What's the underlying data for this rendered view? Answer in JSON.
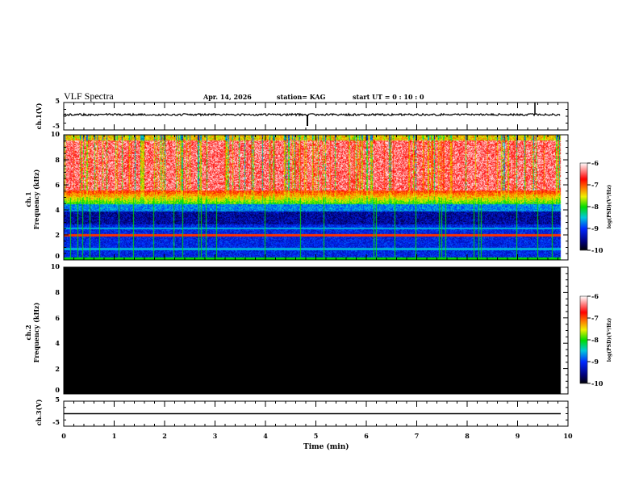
{
  "header": {
    "title": "VLF Spectra",
    "date": "Apr. 14, 2026",
    "station": "station= KAG",
    "start": "start  UT =   0 : 10 : 0"
  },
  "chart_data": [
    {
      "type": "line",
      "name": "ch1 waveform",
      "ylabel": "ch.1(V)",
      "ylim": [
        -5,
        5
      ],
      "yticks": [
        "5",
        "-5"
      ],
      "xlim": [
        0,
        10
      ]
    },
    {
      "type": "heatmap",
      "name": "ch1 spectrogram",
      "ylabel": "ch.1\nFrequency (kHz)",
      "ylabel_lines": [
        "ch.1",
        "Frequency (kHz)"
      ],
      "ylim": [
        0,
        10
      ],
      "yticks": [
        "0",
        "2",
        "4",
        "6",
        "8",
        "10"
      ],
      "xlim": [
        0,
        10
      ],
      "data_end_min": 9.85,
      "colorbar": {
        "label": "log(PSD)(V²/Hz)",
        "range": [
          -10,
          -6
        ],
        "ticks": [
          "-6",
          "-7",
          "-8",
          "-9",
          "-10"
        ]
      }
    },
    {
      "type": "heatmap",
      "name": "ch2 spectrogram",
      "ylabel_lines": [
        "ch.2",
        "Frequency (kHz)"
      ],
      "ylim": [
        0,
        10
      ],
      "yticks": [
        "0",
        "2",
        "4",
        "6",
        "8",
        "10"
      ],
      "xlim": [
        0,
        10
      ],
      "colorbar": {
        "label": "log(PSD)(V²/Hz)",
        "range": [
          -10,
          -6
        ],
        "ticks": [
          "-6",
          "-7",
          "-8",
          "-9",
          "-10"
        ]
      }
    },
    {
      "type": "line",
      "name": "ch3 waveform",
      "ylabel": "ch.3(V)",
      "ylim": [
        -5,
        5
      ],
      "yticks": [
        "5",
        "-5"
      ],
      "value": 0
    }
  ],
  "xaxis": {
    "label": "Time  (min)",
    "ticks": [
      "0",
      "1",
      "2",
      "3",
      "4",
      "5",
      "6",
      "7",
      "8",
      "9",
      "10"
    ]
  }
}
